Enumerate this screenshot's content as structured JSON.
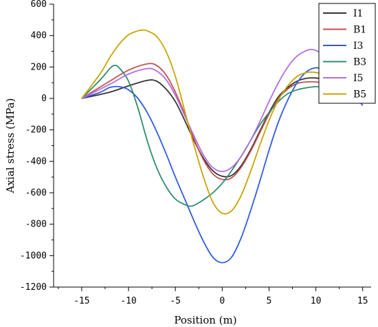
{
  "chart_data": {
    "type": "line",
    "xlabel": "Position (m)",
    "ylabel": "Axial stress (MPa)",
    "xlim": [
      -18,
      15.9
    ],
    "ylim": [
      -1200,
      600
    ],
    "xticks": [
      -15,
      -10,
      -5,
      0,
      5,
      10,
      15
    ],
    "yticks": [
      -1200,
      -1000,
      -800,
      -600,
      -400,
      -200,
      0,
      200,
      400,
      600
    ],
    "grid": false,
    "legend_position": "top-right",
    "series": [
      {
        "name": "I1",
        "color": "#333333",
        "points": [
          [
            -15,
            0
          ],
          [
            -12,
            40
          ],
          [
            -10,
            80
          ],
          [
            -8,
            115
          ],
          [
            -7,
            110
          ],
          [
            -6,
            60
          ],
          [
            -5,
            -20
          ],
          [
            -4,
            -140
          ],
          [
            -3,
            -270
          ],
          [
            -2,
            -380
          ],
          [
            -1,
            -460
          ],
          [
            0,
            -495
          ],
          [
            1,
            -490
          ],
          [
            2,
            -430
          ],
          [
            3,
            -330
          ],
          [
            4,
            -210
          ],
          [
            5,
            -90
          ],
          [
            6,
            10
          ],
          [
            7,
            70
          ],
          [
            8,
            110
          ],
          [
            9,
            128
          ],
          [
            10,
            130
          ],
          [
            11,
            120
          ],
          [
            12,
            95
          ],
          [
            13,
            65
          ],
          [
            14,
            30
          ],
          [
            15,
            0
          ]
        ]
      },
      {
        "name": "B1",
        "color": "#c0504d",
        "points": [
          [
            -15,
            0
          ],
          [
            -12,
            110
          ],
          [
            -10,
            180
          ],
          [
            -8,
            220
          ],
          [
            -7,
            210
          ],
          [
            -6,
            150
          ],
          [
            -5,
            40
          ],
          [
            -4,
            -100
          ],
          [
            -3,
            -260
          ],
          [
            -2,
            -390
          ],
          [
            -1,
            -480
          ],
          [
            0,
            -515
          ],
          [
            1,
            -505
          ],
          [
            2,
            -440
          ],
          [
            3,
            -340
          ],
          [
            4,
            -220
          ],
          [
            5,
            -100
          ],
          [
            6,
            0
          ],
          [
            7,
            60
          ],
          [
            8,
            95
          ],
          [
            9,
            105
          ],
          [
            10,
            105
          ],
          [
            11,
            95
          ],
          [
            12,
            75
          ],
          [
            13,
            50
          ],
          [
            14,
            25
          ],
          [
            15,
            0
          ]
        ]
      },
      {
        "name": "I3",
        "color": "#2e5ae0",
        "points": [
          [
            -15,
            0
          ],
          [
            -13,
            40
          ],
          [
            -12,
            70
          ],
          [
            -11,
            75
          ],
          [
            -10,
            55
          ],
          [
            -9,
            0
          ],
          [
            -8,
            -90
          ],
          [
            -7,
            -210
          ],
          [
            -6,
            -350
          ],
          [
            -5,
            -500
          ],
          [
            -4,
            -640
          ],
          [
            -3,
            -780
          ],
          [
            -2,
            -910
          ],
          [
            -1,
            -1010
          ],
          [
            0,
            -1045
          ],
          [
            1,
            -1010
          ],
          [
            2,
            -890
          ],
          [
            3,
            -720
          ],
          [
            4,
            -530
          ],
          [
            5,
            -330
          ],
          [
            6,
            -150
          ],
          [
            7,
            -10
          ],
          [
            8,
            100
          ],
          [
            9,
            170
          ],
          [
            10,
            195
          ],
          [
            11,
            180
          ],
          [
            12,
            140
          ],
          [
            13,
            90
          ],
          [
            14,
            30
          ],
          [
            15,
            -45
          ]
        ]
      },
      {
        "name": "B3",
        "color": "#2e8b6a",
        "points": [
          [
            -15,
            0
          ],
          [
            -13,
            120
          ],
          [
            -12,
            190
          ],
          [
            -11.5,
            210
          ],
          [
            -11,
            195
          ],
          [
            -10,
            110
          ],
          [
            -9,
            -60
          ],
          [
            -8,
            -270
          ],
          [
            -7,
            -440
          ],
          [
            -6,
            -560
          ],
          [
            -5,
            -640
          ],
          [
            -4,
            -675
          ],
          [
            -3.5,
            -685
          ],
          [
            -3,
            -680
          ],
          [
            -2,
            -645
          ],
          [
            -1,
            -600
          ],
          [
            0,
            -540
          ],
          [
            1,
            -460
          ],
          [
            2,
            -370
          ],
          [
            3,
            -270
          ],
          [
            4,
            -170
          ],
          [
            5,
            -90
          ],
          [
            6,
            -20
          ],
          [
            7,
            30
          ],
          [
            8,
            55
          ],
          [
            9,
            68
          ],
          [
            10,
            75
          ],
          [
            11,
            72
          ],
          [
            12,
            62
          ],
          [
            13,
            45
          ],
          [
            14,
            25
          ],
          [
            15,
            0
          ]
        ]
      },
      {
        "name": "I5",
        "color": "#b26ee0",
        "points": [
          [
            -15,
            0
          ],
          [
            -12,
            90
          ],
          [
            -10,
            155
          ],
          [
            -8,
            190
          ],
          [
            -7,
            175
          ],
          [
            -6,
            120
          ],
          [
            -5,
            20
          ],
          [
            -4,
            -110
          ],
          [
            -3,
            -240
          ],
          [
            -2,
            -360
          ],
          [
            -1,
            -440
          ],
          [
            0,
            -465
          ],
          [
            1,
            -440
          ],
          [
            2,
            -370
          ],
          [
            3,
            -270
          ],
          [
            4,
            -150
          ],
          [
            5,
            -20
          ],
          [
            6,
            100
          ],
          [
            7,
            200
          ],
          [
            8,
            270
          ],
          [
            9,
            305
          ],
          [
            9.5,
            312
          ],
          [
            10,
            305
          ],
          [
            11,
            270
          ],
          [
            12,
            210
          ],
          [
            13,
            140
          ],
          [
            14,
            70
          ],
          [
            15,
            0
          ]
        ]
      },
      {
        "name": "B5",
        "color": "#c9a400",
        "points": [
          [
            -15,
            0
          ],
          [
            -13,
            160
          ],
          [
            -12,
            260
          ],
          [
            -11,
            345
          ],
          [
            -10,
            405
          ],
          [
            -9,
            430
          ],
          [
            -8.5,
            435
          ],
          [
            -8,
            430
          ],
          [
            -7,
            395
          ],
          [
            -6,
            300
          ],
          [
            -5,
            140
          ],
          [
            -4,
            -80
          ],
          [
            -3,
            -300
          ],
          [
            -2,
            -500
          ],
          [
            -1,
            -660
          ],
          [
            0,
            -730
          ],
          [
            1,
            -715
          ],
          [
            2,
            -620
          ],
          [
            3,
            -470
          ],
          [
            4,
            -300
          ],
          [
            5,
            -140
          ],
          [
            6,
            -10
          ],
          [
            7,
            80
          ],
          [
            8,
            140
          ],
          [
            9,
            165
          ],
          [
            10,
            165
          ],
          [
            11,
            145
          ],
          [
            12,
            110
          ],
          [
            13,
            70
          ],
          [
            14,
            30
          ],
          [
            15,
            0
          ]
        ]
      }
    ]
  }
}
